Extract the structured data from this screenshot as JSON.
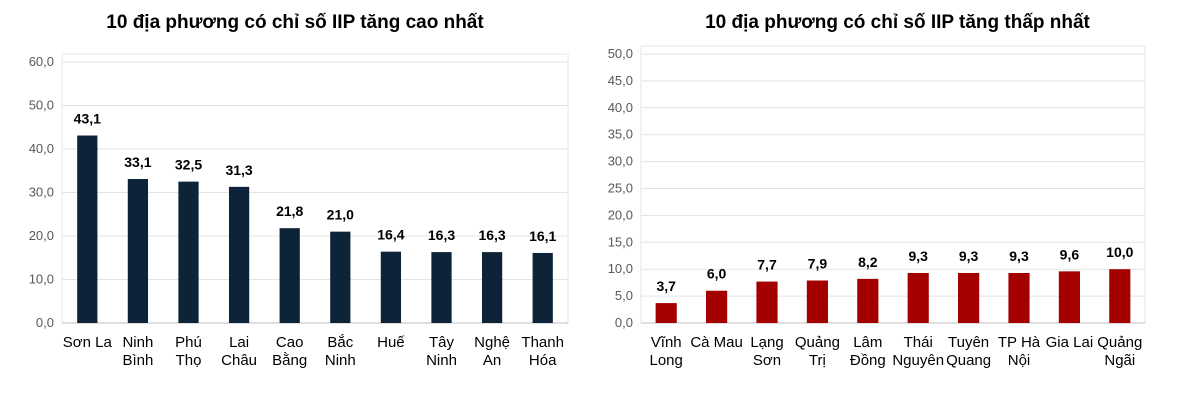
{
  "chart_data": [
    {
      "type": "bar",
      "title": "10 địa phương có chỉ số IIP tăng cao nhất",
      "categories": [
        [
          "Sơn La"
        ],
        [
          "Ninh",
          "Bình"
        ],
        [
          "Phú",
          "Thọ"
        ],
        [
          "Lai",
          "Châu"
        ],
        [
          "Cao",
          "Bằng"
        ],
        [
          "Bắc",
          "Ninh"
        ],
        [
          "Huế"
        ],
        [
          "Tây",
          "Ninh"
        ],
        [
          "Nghệ",
          "An"
        ],
        [
          "Thanh",
          "Hóa"
        ]
      ],
      "values": [
        43.1,
        33.1,
        32.5,
        31.3,
        21.8,
        21.0,
        16.4,
        16.3,
        16.3,
        16.1
      ],
      "data_labels": [
        "43,1",
        "33,1",
        "32,5",
        "31,3",
        "21,8",
        "21,0",
        "16,4",
        "16,3",
        "16,3",
        "16,1"
      ],
      "ylim": [
        0,
        60
      ],
      "yticks": [
        "0,0",
        "10,0",
        "20,0",
        "30,0",
        "40,0",
        "50,0",
        "60,0"
      ],
      "color": "#0D2438",
      "grid": true
    },
    {
      "type": "bar",
      "title": "10 địa phương có chỉ số IIP tăng thấp nhất",
      "categories": [
        [
          "Vĩnh",
          "Long"
        ],
        [
          "Cà Mau"
        ],
        [
          "Lạng",
          "Sơn"
        ],
        [
          "Quảng",
          "Trị"
        ],
        [
          "Lâm",
          "Đồng"
        ],
        [
          "Thái",
          "Nguyên"
        ],
        [
          "Tuyên",
          "Quang"
        ],
        [
          "TP Hà",
          "Nội"
        ],
        [
          "Gia Lai"
        ],
        [
          "Quảng",
          "Ngãi"
        ]
      ],
      "values": [
        3.7,
        6.0,
        7.7,
        7.9,
        8.2,
        9.3,
        9.3,
        9.3,
        9.6,
        10.0
      ],
      "data_labels": [
        "3,7",
        "6,0",
        "7,7",
        "7,9",
        "8,2",
        "9,3",
        "9,3",
        "9,3",
        "9,6",
        "10,0"
      ],
      "ylim": [
        0,
        50
      ],
      "yticks": [
        "0,0",
        "5,0",
        "10,0",
        "15,0",
        "20,0",
        "25,0",
        "30,0",
        "35,0",
        "40,0",
        "45,0",
        "50,0"
      ],
      "color": "#A50000",
      "grid": true
    }
  ]
}
